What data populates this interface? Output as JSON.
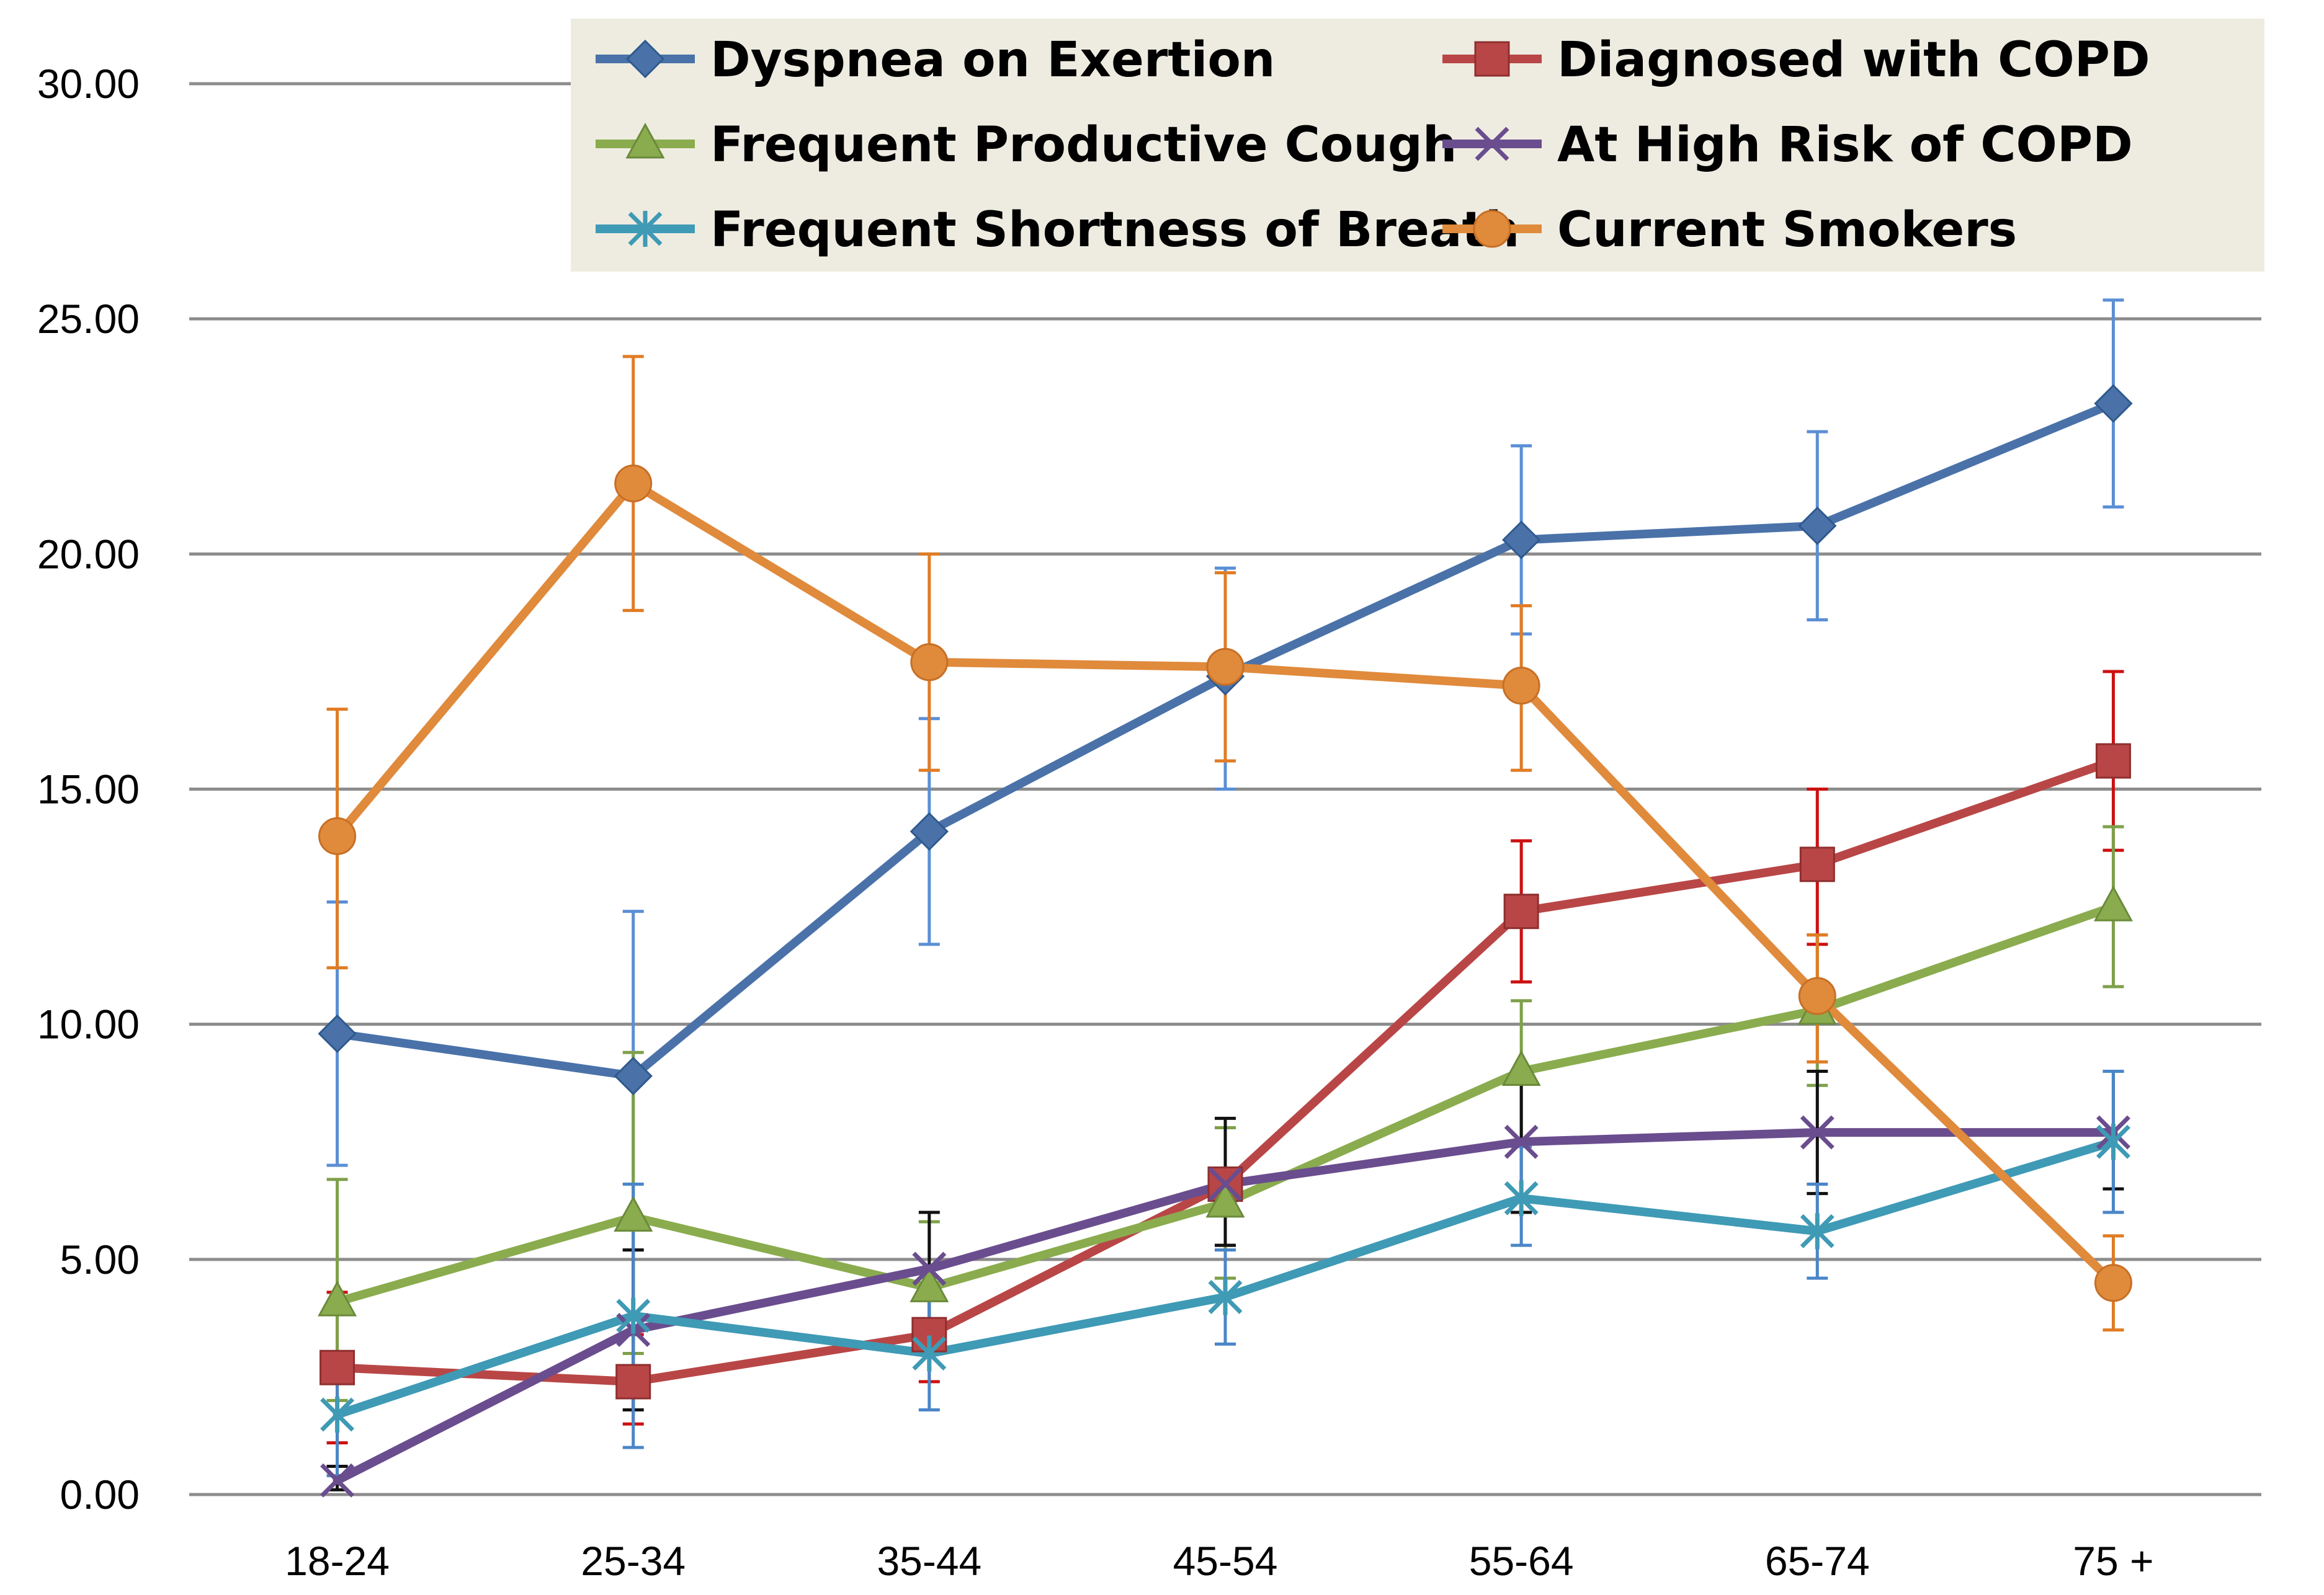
{
  "chart_data": {
    "type": "line",
    "title": "",
    "xlabel": "",
    "ylabel": "",
    "categories": [
      "18-24",
      "25-34",
      "35-44",
      "45-54",
      "55-64",
      "65-74",
      "75 +"
    ],
    "ylim": [
      0,
      30
    ],
    "yticks": [
      "0.00",
      "5.00",
      "10.00",
      "15.00",
      "20.00",
      "25.00",
      "30.00"
    ],
    "grid": "horizontal",
    "legend_position": "top",
    "error_bars": true,
    "series": [
      {
        "name": "Dyspnea on Exertion",
        "color": "#4a72a9",
        "error_color": "#5b8fd5",
        "marker": "diamond",
        "values": [
          9.8,
          8.9,
          14.1,
          17.4,
          20.3,
          20.6,
          23.2
        ],
        "lower": [
          7.0,
          5.2,
          11.7,
          15.0,
          18.3,
          18.6,
          21.0
        ],
        "upper": [
          12.6,
          12.4,
          16.5,
          19.7,
          22.3,
          22.6,
          25.4
        ]
      },
      {
        "name": "Diagnosed with COPD",
        "color": "#b94646",
        "error_color": "#cc1111",
        "marker": "square",
        "values": [
          2.7,
          2.4,
          3.4,
          6.6,
          12.4,
          13.4,
          15.6
        ],
        "lower": [
          1.1,
          1.5,
          2.4,
          5.3,
          10.9,
          11.7,
          13.7
        ],
        "upper": [
          4.3,
          3.4,
          4.5,
          7.8,
          13.9,
          15.0,
          17.5
        ]
      },
      {
        "name": "Frequent Productive Cough",
        "color": "#8aac4e",
        "error_color": "#7ea04a",
        "marker": "triangle",
        "values": [
          4.1,
          5.9,
          4.4,
          6.2,
          9.0,
          10.3,
          12.5
        ],
        "lower": [
          2.0,
          3.0,
          3.0,
          4.6,
          7.5,
          8.7,
          10.8
        ],
        "upper": [
          6.7,
          9.4,
          5.8,
          7.8,
          10.5,
          11.9,
          14.2
        ]
      },
      {
        "name": "At High Risk of COPD",
        "color": "#6a4d8e",
        "error_color": "#111111",
        "marker": "x",
        "values": [
          0.3,
          3.5,
          4.8,
          6.6,
          7.5,
          7.7,
          7.7
        ],
        "lower": [
          0.1,
          1.8,
          3.6,
          5.3,
          6.0,
          6.4,
          6.5
        ],
        "upper": [
          0.6,
          5.2,
          6.0,
          8.0,
          9.0,
          9.0,
          9.0
        ]
      },
      {
        "name": "Frequent Shortness of Breath",
        "color": "#3f9ab5",
        "error_color": "#4a86c8",
        "marker": "asterisk",
        "values": [
          1.7,
          3.8,
          3.0,
          4.2,
          6.3,
          5.6,
          7.5
        ],
        "lower": [
          0.4,
          1.0,
          1.8,
          3.2,
          5.3,
          4.6,
          6.0
        ],
        "upper": [
          3.0,
          6.6,
          4.2,
          5.2,
          7.4,
          6.6,
          9.0
        ]
      },
      {
        "name": "Current Smokers",
        "color": "#e08a3c",
        "error_color": "#e07c25",
        "marker": "circle",
        "values": [
          14.0,
          21.5,
          17.7,
          17.6,
          17.2,
          10.6,
          4.5
        ],
        "lower": [
          11.2,
          18.8,
          15.4,
          15.6,
          15.4,
          9.2,
          3.5
        ],
        "upper": [
          16.7,
          24.2,
          20.0,
          19.6,
          18.9,
          11.9,
          5.5
        ]
      }
    ]
  }
}
